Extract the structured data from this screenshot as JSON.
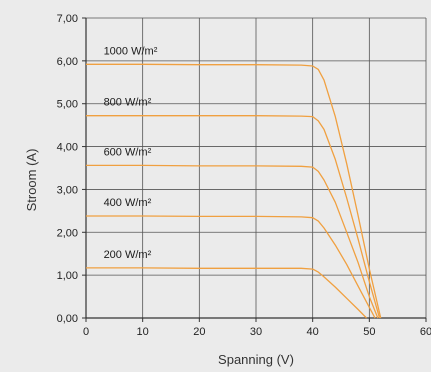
{
  "chart_data": {
    "type": "line",
    "xlabel": "Spanning (V)",
    "ylabel": "Stroom (A)",
    "xlim": [
      0,
      60
    ],
    "ylim": [
      0,
      7
    ],
    "x_ticks": [
      "0",
      "10",
      "20",
      "30",
      "40",
      "50",
      "60"
    ],
    "y_ticks": [
      "0,00",
      "1,00",
      "2,00",
      "3,00",
      "4,00",
      "5,00",
      "6,00",
      "7,00"
    ],
    "grid": true,
    "curve_color": "#f0a040",
    "grid_color": "#555555",
    "background": "#ebebeb",
    "plot_background": "#ebebeb",
    "series": [
      {
        "name": "1000 W/m²",
        "x": [
          0,
          10,
          20,
          30,
          38,
          40,
          41,
          42,
          44,
          46,
          48,
          50,
          52
        ],
        "y": [
          5.92,
          5.92,
          5.91,
          5.91,
          5.9,
          5.88,
          5.8,
          5.55,
          4.7,
          3.6,
          2.4,
          1.15,
          0
        ]
      },
      {
        "name": "800 W/m²",
        "x": [
          0,
          10,
          20,
          30,
          38,
          40,
          41,
          42,
          44,
          46,
          48,
          50,
          51.8
        ],
        "y": [
          4.72,
          4.72,
          4.72,
          4.72,
          4.71,
          4.7,
          4.6,
          4.4,
          3.7,
          2.8,
          1.85,
          0.85,
          0
        ]
      },
      {
        "name": "600 W/m²",
        "x": [
          0,
          10,
          20,
          30,
          38,
          40,
          41,
          42,
          44,
          46,
          48,
          50,
          51.5
        ],
        "y": [
          3.56,
          3.56,
          3.55,
          3.55,
          3.54,
          3.52,
          3.42,
          3.22,
          2.7,
          2.0,
          1.3,
          0.5,
          0
        ]
      },
      {
        "name": "400 W/m²",
        "x": [
          0,
          10,
          20,
          30,
          38,
          40,
          41,
          42,
          44,
          46,
          48,
          50,
          51
        ],
        "y": [
          2.38,
          2.38,
          2.37,
          2.37,
          2.36,
          2.34,
          2.26,
          2.1,
          1.7,
          1.25,
          0.75,
          0.25,
          0
        ]
      },
      {
        "name": "200 W/m²",
        "x": [
          0,
          10,
          20,
          30,
          38,
          40,
          41,
          42,
          44,
          46,
          48,
          49.5
        ],
        "y": [
          1.17,
          1.17,
          1.16,
          1.16,
          1.16,
          1.14,
          1.07,
          0.96,
          0.72,
          0.46,
          0.2,
          0
        ]
      }
    ]
  }
}
